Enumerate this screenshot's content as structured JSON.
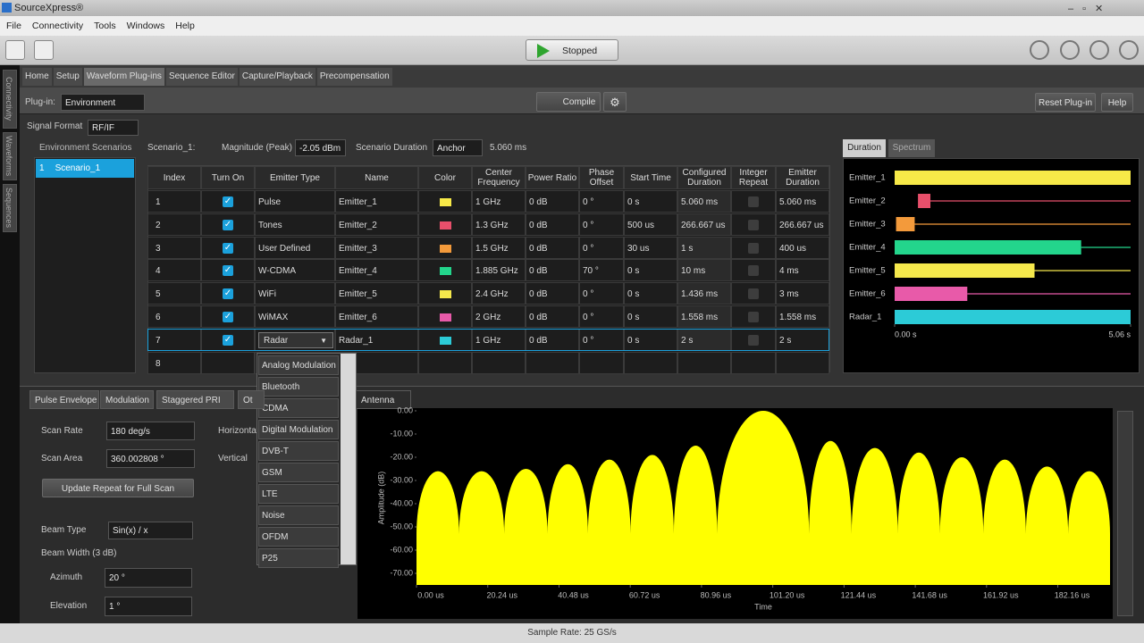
{
  "window": {
    "title": "SourceXpress®"
  },
  "menu": [
    "File",
    "Connectivity",
    "Tools",
    "Windows",
    "Help"
  ],
  "toolbar": {
    "run_state": "Stopped"
  },
  "side_tabs": [
    "Connectivity",
    "Waveforms",
    "Sequences"
  ],
  "tabs": [
    "Home",
    "Setup",
    "Waveform Plug-ins",
    "Sequence Editor",
    "Capture/Playback",
    "Precompensation"
  ],
  "active_tab": "Waveform Plug-ins",
  "plugin": {
    "label": "Plug-in:",
    "value": "Environment",
    "compile": "Compile",
    "reset": "Reset Plug-in",
    "help": "Help"
  },
  "signal_format": {
    "label": "Signal Format",
    "value": "RF/IF"
  },
  "scenarios": {
    "header": "Environment Scenarios",
    "items": [
      {
        "index": "1",
        "name": "Scenario_1"
      }
    ]
  },
  "scenario": {
    "name": "Scenario_1:",
    "magnitude_label": "Magnitude (Peak)",
    "magnitude": "-2.05 dBm",
    "duration_label": "Scenario Duration",
    "duration_mode": "Anchor",
    "duration": "5.060 ms"
  },
  "table": {
    "columns": [
      "Index",
      "Turn On",
      "Emitter Type",
      "Name",
      "Color",
      "Center Frequency",
      "Power Ratio",
      "Phase Offset",
      "Start Time",
      "Configured Duration",
      "Integer Repeat",
      "Emitter Duration"
    ],
    "rows": [
      {
        "index": "1",
        "turn_on": true,
        "emitter_type": "Pulse",
        "name": "Emitter_1",
        "color": "#f7e948",
        "center_frequency": "1 GHz",
        "power_ratio": "0 dB",
        "phase_offset": "0 °",
        "start_time": "0 s",
        "configured_duration": "5.060 ms",
        "integer_repeat": false,
        "emitter_duration": "5.060 ms"
      },
      {
        "index": "2",
        "turn_on": true,
        "emitter_type": "Tones",
        "name": "Emitter_2",
        "color": "#e84f6b",
        "center_frequency": "1.3 GHz",
        "power_ratio": "0 dB",
        "phase_offset": "0 °",
        "start_time": "500 us",
        "configured_duration": "266.667 us",
        "integer_repeat": false,
        "emitter_duration": "266.667 us"
      },
      {
        "index": "3",
        "turn_on": true,
        "emitter_type": "User Defined",
        "name": "Emitter_3",
        "color": "#f39a3b",
        "center_frequency": "1.5 GHz",
        "power_ratio": "0 dB",
        "phase_offset": "0 °",
        "start_time": "30 us",
        "configured_duration": "1 s",
        "integer_repeat": false,
        "emitter_duration": "400 us"
      },
      {
        "index": "4",
        "turn_on": true,
        "emitter_type": "W-CDMA",
        "name": "Emitter_4",
        "color": "#23d58c",
        "center_frequency": "1.885 GHz",
        "power_ratio": "0 dB",
        "phase_offset": "70 °",
        "start_time": "0 s",
        "configured_duration": "10 ms",
        "integer_repeat": false,
        "emitter_duration": "4 ms"
      },
      {
        "index": "5",
        "turn_on": true,
        "emitter_type": "WiFi",
        "name": "Emitter_5",
        "color": "#f5e84c",
        "center_frequency": "2.4 GHz",
        "power_ratio": "0 dB",
        "phase_offset": "0 °",
        "start_time": "0 s",
        "configured_duration": "1.436 ms",
        "integer_repeat": false,
        "emitter_duration": "3 ms"
      },
      {
        "index": "6",
        "turn_on": true,
        "emitter_type": "WiMAX",
        "name": "Emitter_6",
        "color": "#e85aa9",
        "center_frequency": "2 GHz",
        "power_ratio": "0 dB",
        "phase_offset": "0 °",
        "start_time": "0 s",
        "configured_duration": "1.558 ms",
        "integer_repeat": false,
        "emitter_duration": "1.558 ms"
      },
      {
        "index": "7",
        "turn_on": true,
        "emitter_type": "Radar",
        "name": "Radar_1",
        "color": "#2ccbd7",
        "center_frequency": "1 GHz",
        "power_ratio": "0 dB",
        "phase_offset": "0 °",
        "start_time": "0 s",
        "configured_duration": "2 s",
        "integer_repeat": false,
        "emitter_duration": "2 s",
        "selected": true
      },
      {
        "index": "8"
      }
    ]
  },
  "emitter_type_menu": [
    "Analog Modulation",
    "Bluetooth",
    "CDMA",
    "Digital Modulation",
    "DVB-T",
    "GSM",
    "LTE",
    "Noise",
    "OFDM",
    "P25"
  ],
  "duration_tabs": [
    "Duration",
    "Spectrum"
  ],
  "bottom_tabs": [
    "Pulse Envelope",
    "Modulation",
    "Staggered PRI",
    "Ot",
    "Antenna"
  ],
  "antenna": {
    "scan_rate_label": "Scan Rate",
    "scan_rate": "180 deg/s",
    "scan_area_label": "Scan Area",
    "scan_area": "360.002808 °",
    "update_button": "Update Repeat for Full Scan",
    "horizontal_label": "Horizonta",
    "vertical_label": "Vertical",
    "beam_type_label": "Beam Type",
    "beam_type": "Sin(x) / x",
    "beam_width_label": "Beam Width (3 dB)",
    "azimuth_label": "Azimuth",
    "azimuth": "20 °",
    "elevation_label": "Elevation",
    "elevation": "1 °"
  },
  "status": "Sample Rate: 25 GS/s",
  "chart_data": [
    {
      "type": "gantt",
      "categories": [
        "Emitter_1",
        "Emitter_2",
        "Emitter_3",
        "Emitter_4",
        "Emitter_5",
        "Emitter_6",
        "Radar_1"
      ],
      "start": [
        0,
        0.5,
        0.03,
        0,
        0,
        0,
        0
      ],
      "values": [
        5.06,
        0.267,
        0.4,
        4,
        3,
        1.558,
        5.06
      ],
      "colors": [
        "#f7e948",
        "#e84f6b",
        "#f39a3b",
        "#23d58c",
        "#f5e84c",
        "#e85aa9",
        "#2ccbd7"
      ],
      "xlim": [
        0,
        5.06
      ],
      "xticks": [
        {
          "value": 0,
          "label": "0.00 s"
        },
        {
          "value": 5.06,
          "label": "5.06 s"
        }
      ]
    },
    {
      "type": "area",
      "ylabel": "Amplitude (dB)",
      "xlabel": "Time",
      "color": "#ffff00",
      "x": [
        0,
        6.1,
        12.1,
        18.5,
        24.9,
        31.1,
        37.2,
        43.0,
        48.7,
        54.8,
        60.8,
        67.0,
        73.1,
        79.3,
        85.4,
        98.5,
        111.5,
        117.6,
        123.6,
        130.2,
        136.7,
        142.7,
        148.7,
        154.9,
        161.0,
        167.1,
        173.1,
        179.1,
        185.1,
        191.1,
        197
      ],
      "values": [
        -53,
        -26,
        -53,
        -26,
        -53,
        -25,
        -53,
        -23,
        -53,
        -21,
        -53,
        -19,
        -53,
        -15,
        -53,
        0,
        -53,
        -13,
        -53,
        -16,
        -53,
        -18,
        -53,
        -20,
        -53,
        -21,
        -53,
        -24,
        -53,
        -26,
        -53
      ],
      "xlim": [
        0,
        197
      ],
      "ylim": [
        -75,
        0
      ],
      "yticks": [
        {
          "value": 0,
          "label": "0.00"
        },
        {
          "value": -10,
          "label": "-10.00"
        },
        {
          "value": -20,
          "label": "-20.00"
        },
        {
          "value": -30,
          "label": "-30.00"
        },
        {
          "value": -40,
          "label": "-40.00"
        },
        {
          "value": -50,
          "label": "-50.00"
        },
        {
          "value": -60,
          "label": "-60.00"
        },
        {
          "value": -70,
          "label": "-70.00"
        }
      ],
      "xticks": [
        {
          "value": 0,
          "label": "0.00 us"
        },
        {
          "value": 20.24,
          "label": "20.24 us"
        },
        {
          "value": 40.48,
          "label": "40.48 us"
        },
        {
          "value": 60.72,
          "label": "60.72 us"
        },
        {
          "value": 80.96,
          "label": "80.96 us"
        },
        {
          "value": 101.2,
          "label": "101.20 us"
        },
        {
          "value": 121.44,
          "label": "121.44 us"
        },
        {
          "value": 141.68,
          "label": "141.68 us"
        },
        {
          "value": 161.92,
          "label": "161.92 us"
        },
        {
          "value": 182.16,
          "label": "182.16 us"
        }
      ]
    }
  ]
}
